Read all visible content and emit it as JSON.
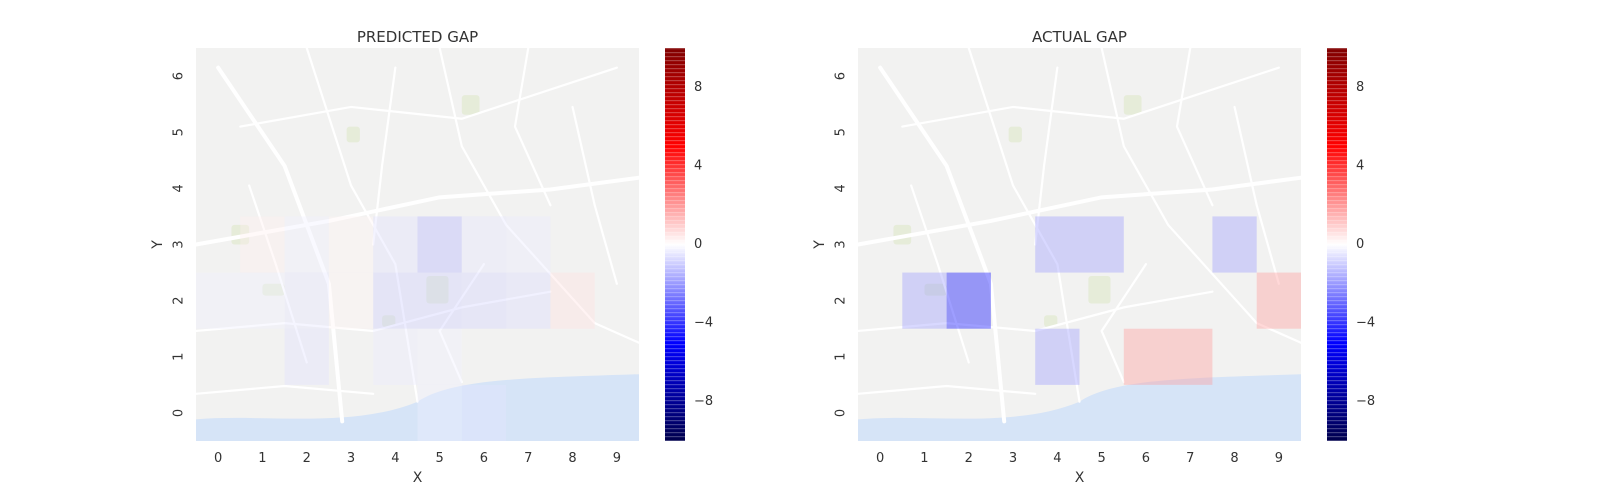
{
  "chart_data": [
    {
      "type": "heatmap",
      "title": "PREDICTED GAP",
      "xlabel": "X",
      "ylabel": "Y",
      "x_ticks": [
        "0",
        "1",
        "2",
        "3",
        "4",
        "5",
        "6",
        "7",
        "8",
        "9"
      ],
      "y_ticks": [
        "0",
        "1",
        "2",
        "3",
        "4",
        "5",
        "6"
      ],
      "grid_cols": 10,
      "grid_rows": 7,
      "background": "street map",
      "cells": [
        {
          "x": 1,
          "y": 3,
          "value": 0.3
        },
        {
          "x": 2,
          "y": 3,
          "value": -0.3
        },
        {
          "x": 3,
          "y": 3,
          "value": 0.2
        },
        {
          "x": 4,
          "y": 3,
          "value": -0.6
        },
        {
          "x": 5,
          "y": 3,
          "value": -1.5
        },
        {
          "x": 6,
          "y": 3,
          "value": -0.5
        },
        {
          "x": 7,
          "y": 3,
          "value": -0.4
        },
        {
          "x": 0,
          "y": 2,
          "value": -0.3
        },
        {
          "x": 1,
          "y": 2,
          "value": -0.3
        },
        {
          "x": 2,
          "y": 2,
          "value": -0.5
        },
        {
          "x": 3,
          "y": 2,
          "value": 0.2
        },
        {
          "x": 4,
          "y": 2,
          "value": -1.0
        },
        {
          "x": 5,
          "y": 2,
          "value": -1.0
        },
        {
          "x": 6,
          "y": 2,
          "value": -0.9
        },
        {
          "x": 7,
          "y": 2,
          "value": -0.7
        },
        {
          "x": 8,
          "y": 2,
          "value": 0.6
        },
        {
          "x": 2,
          "y": 1,
          "value": -0.6
        },
        {
          "x": 4,
          "y": 1,
          "value": -0.4
        },
        {
          "x": 5,
          "y": 1,
          "value": -0.3
        },
        {
          "x": 6,
          "y": 0,
          "value": -0.5
        },
        {
          "x": 5,
          "y": 0,
          "value": -0.3
        }
      ],
      "colorbar": {
        "min": -10,
        "max": 10,
        "ticks": [
          -8,
          -4,
          0,
          4,
          8
        ],
        "colormap": "seismic"
      }
    },
    {
      "type": "heatmap",
      "title": "ACTUAL GAP",
      "xlabel": "X",
      "ylabel": "Y",
      "x_ticks": [
        "0",
        "1",
        "2",
        "3",
        "4",
        "5",
        "6",
        "7",
        "8",
        "9"
      ],
      "y_ticks": [
        "0",
        "1",
        "2",
        "3",
        "4",
        "5",
        "6"
      ],
      "grid_cols": 10,
      "grid_rows": 7,
      "background": "street map",
      "cells": [
        {
          "x": 4,
          "y": 3,
          "value": -2
        },
        {
          "x": 5,
          "y": 3,
          "value": -2
        },
        {
          "x": 8,
          "y": 3,
          "value": -2
        },
        {
          "x": 1,
          "y": 2,
          "value": -2
        },
        {
          "x": 2,
          "y": 2,
          "value": -5
        },
        {
          "x": 9,
          "y": 2,
          "value": 2
        },
        {
          "x": 4,
          "y": 1,
          "value": -2
        },
        {
          "x": 6,
          "y": 1,
          "value": 2
        },
        {
          "x": 7,
          "y": 1,
          "value": 2
        }
      ],
      "colorbar": {
        "min": -10,
        "max": 10,
        "ticks": [
          -8,
          -4,
          0,
          4,
          8
        ],
        "colormap": "seismic"
      }
    }
  ]
}
